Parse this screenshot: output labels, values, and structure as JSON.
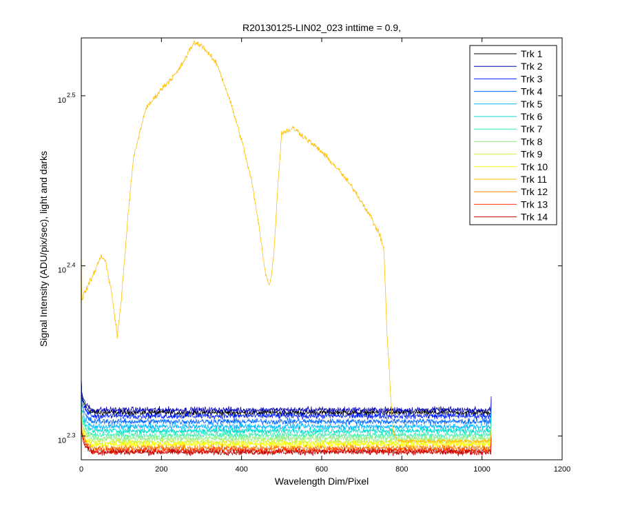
{
  "chart_data": {
    "type": "line",
    "title": "R20130125-LIN02_023 inttime = 0.9,",
    "xlabel": "Wavelength Dim/Pixel",
    "ylabel": "Signal Intensity (ADU/pix/sec), light and darks",
    "xlim": [
      0,
      1200
    ],
    "ylim_log10": [
      2.286,
      2.534
    ],
    "y_scale": "log",
    "grid": false,
    "legend_position": "top-right",
    "x_ticks": [
      0,
      200,
      400,
      600,
      800,
      1000,
      1200
    ],
    "x_tick_labels": [
      "0",
      "200",
      "400",
      "600",
      "800",
      "1000",
      "1200"
    ],
    "y_ticks_log10": [
      2.3,
      2.4,
      2.5
    ],
    "y_tick_base": "10",
    "y_tick_exponents": [
      "2.3",
      "2.4",
      "2.5"
    ],
    "pixel_count": 1024,
    "series": [
      {
        "name": "Trk 1",
        "color": "#000000",
        "level_log10": 2.3137
      },
      {
        "name": "Trk 2",
        "color": "#0000b0",
        "level_log10": 2.3153
      },
      {
        "name": "Trk 3",
        "color": "#0020ff",
        "level_log10": 2.3118
      },
      {
        "name": "Trk 4",
        "color": "#0066ff",
        "level_log10": 2.3085
      },
      {
        "name": "Trk 5",
        "color": "#00b4ff",
        "level_log10": 2.3055
      },
      {
        "name": "Trk 6",
        "color": "#00dccc",
        "level_log10": 2.303
      },
      {
        "name": "Trk 7",
        "color": "#40f0b0",
        "level_log10": 2.3005
      },
      {
        "name": "Trk 8",
        "color": "#90f080",
        "level_log10": 2.2985
      },
      {
        "name": "Trk 9",
        "color": "#d0f040",
        "level_log10": 2.2965
      },
      {
        "name": "Trk 10",
        "color": "#ffff00",
        "level_log10": 2.295
      },
      {
        "name": "Trk 11",
        "color": "#ffbf00",
        "profile": [
          [
            0,
            2.38
          ],
          [
            10,
            2.385
          ],
          [
            30,
            2.395
          ],
          [
            50,
            2.406
          ],
          [
            60,
            2.403
          ],
          [
            75,
            2.385
          ],
          [
            90,
            2.359
          ],
          [
            100,
            2.38
          ],
          [
            115,
            2.425
          ],
          [
            130,
            2.463
          ],
          [
            160,
            2.492
          ],
          [
            200,
            2.504
          ],
          [
            240,
            2.514
          ],
          [
            260,
            2.522
          ],
          [
            280,
            2.531
          ],
          [
            300,
            2.53
          ],
          [
            340,
            2.518
          ],
          [
            370,
            2.498
          ],
          [
            400,
            2.474
          ],
          [
            425,
            2.45
          ],
          [
            445,
            2.421
          ],
          [
            460,
            2.395
          ],
          [
            470,
            2.388
          ],
          [
            480,
            2.405
          ],
          [
            490,
            2.445
          ],
          [
            500,
            2.478
          ],
          [
            530,
            2.481
          ],
          [
            560,
            2.475
          ],
          [
            600,
            2.467
          ],
          [
            640,
            2.457
          ],
          [
            680,
            2.445
          ],
          [
            720,
            2.43
          ],
          [
            745,
            2.418
          ],
          [
            755,
            2.41
          ],
          [
            758,
            2.392
          ],
          [
            763,
            2.36
          ],
          [
            772,
            2.325
          ],
          [
            778,
            2.302
          ],
          [
            790,
            2.297
          ],
          [
            1024,
            2.297
          ]
        ]
      },
      {
        "name": "Trk 12",
        "color": "#ff8000",
        "level_log10": 2.293
      },
      {
        "name": "Trk 13",
        "color": "#ff3000",
        "level_log10": 2.2915
      },
      {
        "name": "Trk 14",
        "color": "#c00000",
        "level_log10": 2.2905
      }
    ]
  }
}
